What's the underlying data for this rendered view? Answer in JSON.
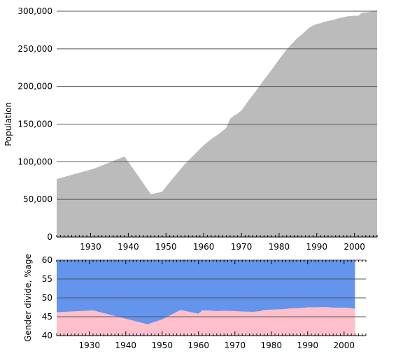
{
  "chart_data": [
    {
      "type": "area",
      "title": "",
      "xlabel": "",
      "ylabel": "Population",
      "xlim": [
        1921,
        2006
      ],
      "ylim": [
        0,
        300000
      ],
      "yticks": [
        0,
        50000,
        100000,
        150000,
        200000,
        250000,
        300000
      ],
      "ytick_labels": [
        "0",
        "50,000",
        "100,000",
        "150,000",
        "200,000",
        "250,000",
        "300,000"
      ],
      "xticks": [
        1930,
        1940,
        1950,
        1960,
        1970,
        1980,
        1990,
        2000
      ],
      "xtick_labels": [
        "1930",
        "1940",
        "1950",
        "1960",
        "1970",
        "1980",
        "1990",
        "2000"
      ],
      "grid": true,
      "color": "#bbbbbb",
      "series": [
        {
          "x": [
            1921,
            1931,
            1939,
            1946,
            1949,
            1950,
            1955,
            1960,
            1962,
            1964,
            1966,
            1967,
            1968,
            1969,
            1970,
            1972,
            1974,
            1976,
            1978,
            1980,
            1982,
            1984,
            1985,
            1986,
            1988,
            1989,
            1990,
            1991,
            1992,
            1994,
            1996,
            1998,
            2000,
            2001,
            2002,
            2004,
            2006
          ],
          "y": [
            77000,
            91000,
            107000,
            57000,
            60000,
            67000,
            97000,
            122000,
            130000,
            137000,
            145000,
            157000,
            161000,
            164000,
            168000,
            182000,
            195000,
            209000,
            222000,
            236000,
            249000,
            260000,
            265000,
            269000,
            278000,
            281000,
            283000,
            284000,
            286000,
            288000,
            291000,
            293000,
            294000,
            294000,
            298000,
            299000,
            301000
          ]
        }
      ]
    },
    {
      "type": "area",
      "title": "",
      "xlabel": "",
      "ylabel": "Gender divide, %age",
      "xlim": [
        1921,
        2006
      ],
      "ylim": [
        40,
        60
      ],
      "yticks": [
        40,
        45,
        50,
        55,
        60
      ],
      "ytick_labels": [
        "40",
        "45",
        "50",
        "55",
        "60"
      ],
      "xticks": [
        1930,
        1940,
        1950,
        1960,
        1970,
        1980,
        1990,
        2000
      ],
      "xtick_labels": [
        "1930",
        "1940",
        "1950",
        "1960",
        "1970",
        "1980",
        "1990",
        "2000"
      ],
      "grid": true,
      "colors": {
        "lower": "#ffc0cb",
        "upper": "#6495ed"
      },
      "series": [
        {
          "name": "",
          "x": [
            1921,
            1931,
            1946,
            1950,
            1955,
            1960,
            1961,
            1962,
            1965,
            1967,
            1970,
            1972,
            1975,
            1977,
            1978,
            1980,
            1983,
            1985,
            1988,
            1990,
            1992,
            1995,
            1997,
            2000,
            2002,
            2003
          ],
          "y": [
            46.2,
            46.7,
            43.0,
            44.3,
            46.8,
            45.8,
            46.7,
            46.7,
            46.5,
            46.6,
            46.5,
            46.4,
            46.3,
            46.5,
            46.8,
            46.9,
            47.0,
            47.2,
            47.3,
            47.5,
            47.5,
            47.6,
            47.4,
            47.4,
            47.3,
            47.1
          ]
        }
      ]
    }
  ]
}
